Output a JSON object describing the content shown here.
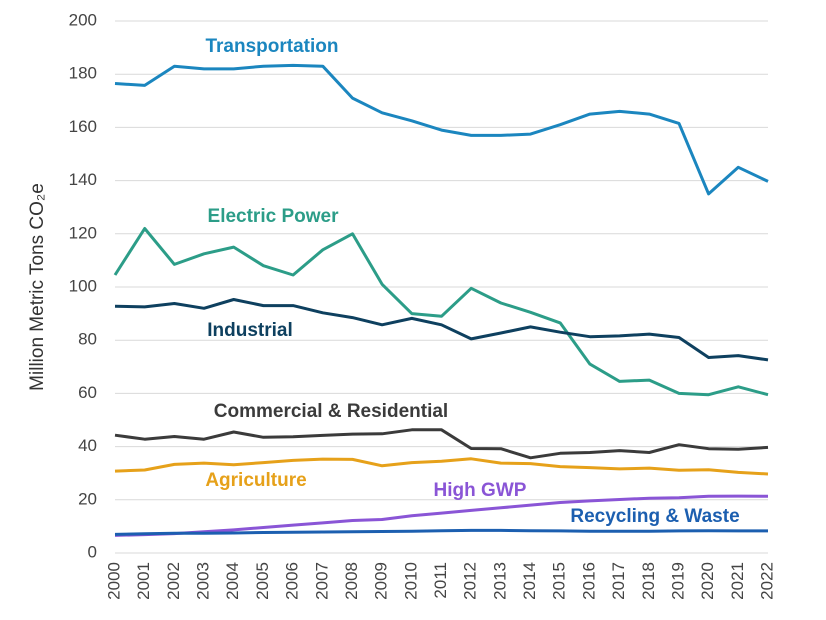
{
  "chart_data": {
    "type": "line",
    "y_label": "Million Metric Tons CO₂e",
    "categories": [
      "2000",
      "2001",
      "2002",
      "2003",
      "2004",
      "2005",
      "2006",
      "2007",
      "2008",
      "2009",
      "2010",
      "2011",
      "2012",
      "2013",
      "2014",
      "2015",
      "2016",
      "2017",
      "2018",
      "2019",
      "2020",
      "2021",
      "2022"
    ],
    "ylim": [
      0,
      200
    ],
    "yticks": [
      0,
      20,
      40,
      60,
      80,
      100,
      120,
      140,
      160,
      180,
      200
    ],
    "grid": true,
    "series": [
      {
        "name": "Transportation",
        "color": "#1b86bf",
        "values": [
          176.5,
          175.8,
          183,
          182,
          182,
          183,
          183.3,
          183,
          171,
          165.5,
          162.5,
          159,
          157,
          157,
          157.5,
          161,
          165,
          166,
          165,
          161.5,
          135,
          145,
          139.7
        ]
      },
      {
        "name": "Electric Power",
        "color": "#2c9d88",
        "values": [
          104.5,
          122,
          108.5,
          112.5,
          115,
          108,
          104.5,
          114,
          120,
          101,
          90,
          89,
          99.5,
          94,
          90.5,
          86.5,
          71,
          64.5,
          65,
          60,
          59.5,
          62.5,
          59.5
        ]
      },
      {
        "name": "Industrial",
        "color": "#0e405f",
        "values": [
          92.8,
          92.5,
          93.8,
          92,
          95.3,
          93,
          93,
          90.3,
          88.5,
          85.8,
          88.2,
          85.8,
          80.5,
          82.7,
          85,
          83,
          81.3,
          81.6,
          82.3,
          81,
          73.5,
          74.2,
          72.6
        ]
      },
      {
        "name": "Commercial & Residential",
        "color": "#3b3b3b",
        "values": [
          44.3,
          42.8,
          43.8,
          42.8,
          45.5,
          43.5,
          43.7,
          44.2,
          44.7,
          44.8,
          46.3,
          46.3,
          39.3,
          39.2,
          35.8,
          37.5,
          37.8,
          38.5,
          37.8,
          40.7,
          39.2,
          39,
          39.7
        ]
      },
      {
        "name": "Agriculture",
        "color": "#e6a11a",
        "values": [
          30.8,
          31.2,
          33.3,
          33.8,
          33.2,
          34,
          34.8,
          35.3,
          35.2,
          32.8,
          34,
          34.5,
          35.4,
          33.8,
          33.6,
          32.5,
          32.1,
          31.6,
          31.9,
          31.1,
          31.3,
          30.3,
          29.7
        ]
      },
      {
        "name": "High GWP",
        "color": "#8a55d6",
        "values": [
          6.6,
          6.9,
          7.3,
          8,
          8.7,
          9.6,
          10.5,
          11.3,
          12.2,
          12.6,
          14,
          15,
          16,
          17,
          18,
          19,
          19.6,
          20.1,
          20.6,
          20.8,
          21.3,
          21.4,
          21.3
        ]
      },
      {
        "name": "Recycling & Waste",
        "color": "#1c5fb0",
        "values": [
          7,
          7.2,
          7.4,
          7.4,
          7.5,
          7.7,
          7.8,
          7.9,
          8,
          8.1,
          8.2,
          8.4,
          8.5,
          8.5,
          8.4,
          8.3,
          8.2,
          8.2,
          8.2,
          8.3,
          8.4,
          8.3,
          8.3
        ]
      }
    ]
  }
}
